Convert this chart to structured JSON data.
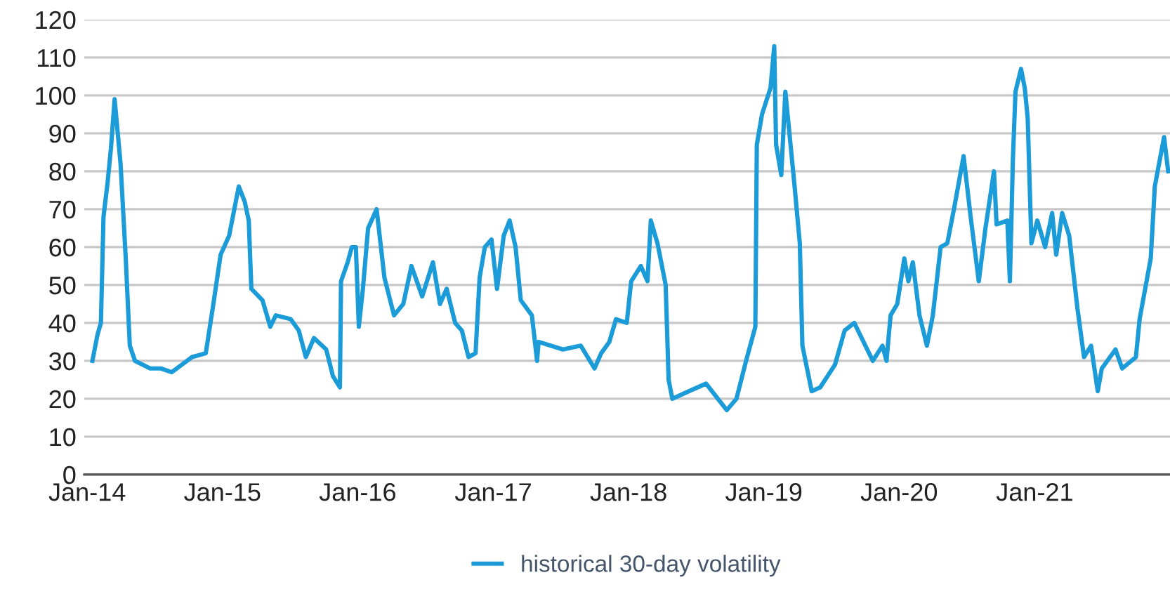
{
  "chart_data": {
    "type": "line",
    "x": [
      "2014-01-15",
      "2014-01-29",
      "2014-02-07",
      "2014-02-14",
      "2014-02-25",
      "2014-03-06",
      "2014-03-16",
      "2014-04-01",
      "2014-04-15",
      "2014-04-26",
      "2014-05-10",
      "2014-06-20",
      "2014-07-19",
      "2014-08-17",
      "2014-10-11",
      "2014-11-17",
      "2014-12-09",
      "2014-12-27",
      "2015-01-19",
      "2015-02-14",
      "2015-03-02",
      "2015-03-13",
      "2015-03-20",
      "2015-04-19",
      "2015-05-10",
      "2015-05-25",
      "2015-07-04",
      "2015-07-26",
      "2015-08-14",
      "2015-09-05",
      "2015-10-08",
      "2015-10-26",
      "2015-11-14",
      "2015-11-17",
      "2015-12-05",
      "2015-12-16",
      "2015-12-27",
      "2016-01-04",
      "2016-01-15",
      "2016-01-29",
      "2016-02-21",
      "2016-03-13",
      "2016-04-08",
      "2016-05-03",
      "2016-05-25",
      "2016-06-23",
      "2016-07-22",
      "2016-08-10",
      "2016-08-28",
      "2016-09-20",
      "2016-10-08",
      "2016-10-26",
      "2016-11-14",
      "2016-11-25",
      "2016-12-09",
      "2016-12-27",
      "2017-01-11",
      "2017-01-29",
      "2017-02-14",
      "2017-03-02",
      "2017-03-16",
      "2017-04-15",
      "2017-04-29",
      "2017-05-03",
      "2017-07-08",
      "2017-08-25",
      "2017-10-01",
      "2017-10-19",
      "2017-11-10",
      "2017-11-28",
      "2017-12-27",
      "2018-01-08",
      "2018-02-03",
      "2018-02-21",
      "2018-03-02",
      "2018-03-20",
      "2018-04-11",
      "2018-04-19",
      "2018-04-29",
      "2018-06-13",
      "2018-07-29",
      "2018-09-23",
      "2018-10-19",
      "2018-11-14",
      "2018-12-09",
      "2018-12-13",
      "2018-12-27",
      "2019-01-19",
      "2019-01-29",
      "2019-02-03",
      "2019-02-17",
      "2019-02-28",
      "2019-03-13",
      "2019-03-24",
      "2019-04-08",
      "2019-04-15",
      "2019-05-10",
      "2019-06-02",
      "2019-07-12",
      "2019-08-07",
      "2019-09-02",
      "2019-10-22",
      "2019-11-17",
      "2019-11-28",
      "2019-12-09",
      "2019-12-27",
      "2020-01-15",
      "2020-01-26",
      "2020-02-07",
      "2020-02-25",
      "2020-03-16",
      "2020-04-01",
      "2020-04-22",
      "2020-05-10",
      "2020-05-28",
      "2020-06-23",
      "2020-07-12",
      "2020-08-03",
      "2020-08-21",
      "2020-09-13",
      "2020-09-20",
      "2020-10-19",
      "2020-10-26",
      "2020-11-03",
      "2020-11-10",
      "2020-11-25",
      "2020-12-05",
      "2020-12-13",
      "2020-12-23",
      "2021-01-08",
      "2021-01-29",
      "2021-02-17",
      "2021-02-28",
      "2021-03-16",
      "2021-04-04",
      "2021-04-11",
      "2021-04-26",
      "2021-05-14",
      "2021-06-02",
      "2021-06-20",
      "2021-07-01",
      "2021-08-07",
      "2021-08-25",
      "2021-10-01",
      "2021-10-11",
      "2021-11-10",
      "2021-11-21",
      "2021-12-16",
      "2021-12-27"
    ],
    "series": [
      {
        "name": "historical 30-day volatility",
        "color": "#1b9bd7",
        "values": [
          30,
          37,
          40,
          68,
          77,
          86,
          99,
          82,
          57,
          34,
          30,
          28,
          28,
          27,
          31,
          32,
          46,
          58,
          63,
          76,
          72,
          67,
          49,
          46,
          39,
          42,
          41,
          38,
          31,
          36,
          33,
          26,
          23,
          51,
          56,
          60,
          60,
          39,
          49,
          65,
          70,
          52,
          42,
          45,
          55,
          47,
          56,
          45,
          49,
          40,
          38,
          31,
          32,
          52,
          60,
          62,
          49,
          63,
          67,
          60,
          46,
          42,
          30,
          35,
          33,
          34,
          28,
          32,
          35,
          41,
          40,
          51,
          55,
          51,
          67,
          61,
          50,
          25,
          20,
          22,
          24,
          17,
          20,
          30,
          39,
          87,
          95,
          102,
          113,
          87,
          79,
          101,
          88,
          77,
          61,
          34,
          22,
          23,
          29,
          38,
          40,
          30,
          34,
          30,
          42,
          45,
          57,
          51,
          56,
          42,
          34,
          42,
          60,
          61,
          70,
          84,
          68,
          51,
          65,
          80,
          66,
          67,
          51,
          83,
          101,
          107,
          102,
          94,
          61,
          67,
          60,
          69,
          58,
          69,
          63,
          57,
          44,
          31,
          34,
          22,
          28,
          33,
          28,
          31,
          41,
          57,
          76,
          89,
          80
        ]
      }
    ],
    "xlim": [
      "2013-12-24",
      "2022-01-01"
    ],
    "xticks": [
      {
        "value": "2014-01-01",
        "label": "Jan-14"
      },
      {
        "value": "2015-01-01",
        "label": "Jan-15"
      },
      {
        "value": "2016-01-01",
        "label": "Jan-16"
      },
      {
        "value": "2017-01-01",
        "label": "Jan-17"
      },
      {
        "value": "2018-01-01",
        "label": "Jan-18"
      },
      {
        "value": "2019-01-01",
        "label": "Jan-19"
      },
      {
        "value": "2020-01-01",
        "label": "Jan-20"
      },
      {
        "value": "2021-01-01",
        "label": "Jan-21"
      }
    ],
    "ylim": [
      0,
      120
    ],
    "yticks": [
      0,
      10,
      20,
      30,
      40,
      50,
      60,
      70,
      80,
      90,
      100,
      110,
      120
    ],
    "grid": "y",
    "legend": "bottom",
    "marker": "none",
    "line_style": "solid"
  }
}
